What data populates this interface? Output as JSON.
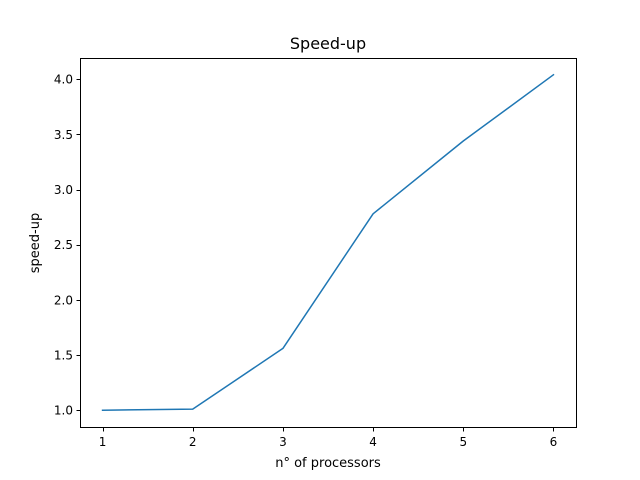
{
  "chart_data": {
    "type": "line",
    "title": "Speed-up",
    "xlabel": "n° of processors",
    "ylabel": "speed-up",
    "x": [
      1,
      2,
      3,
      4,
      5,
      6
    ],
    "series": [
      {
        "values": [
          1.0,
          1.01,
          1.56,
          2.78,
          3.44,
          4.04
        ],
        "color": "#1f77b4"
      }
    ],
    "xlim": [
      0.75,
      6.25
    ],
    "ylim": [
      0.848,
      4.192
    ],
    "xticks": [
      1,
      2,
      3,
      4,
      5,
      6
    ],
    "yticks": [
      1.0,
      1.5,
      2.0,
      2.5,
      3.0,
      3.5,
      4.0
    ],
    "ytick_labels": [
      "1.0",
      "1.5",
      "2.0",
      "2.5",
      "3.0",
      "3.5",
      "4.0"
    ],
    "grid": false,
    "legend": "none"
  }
}
